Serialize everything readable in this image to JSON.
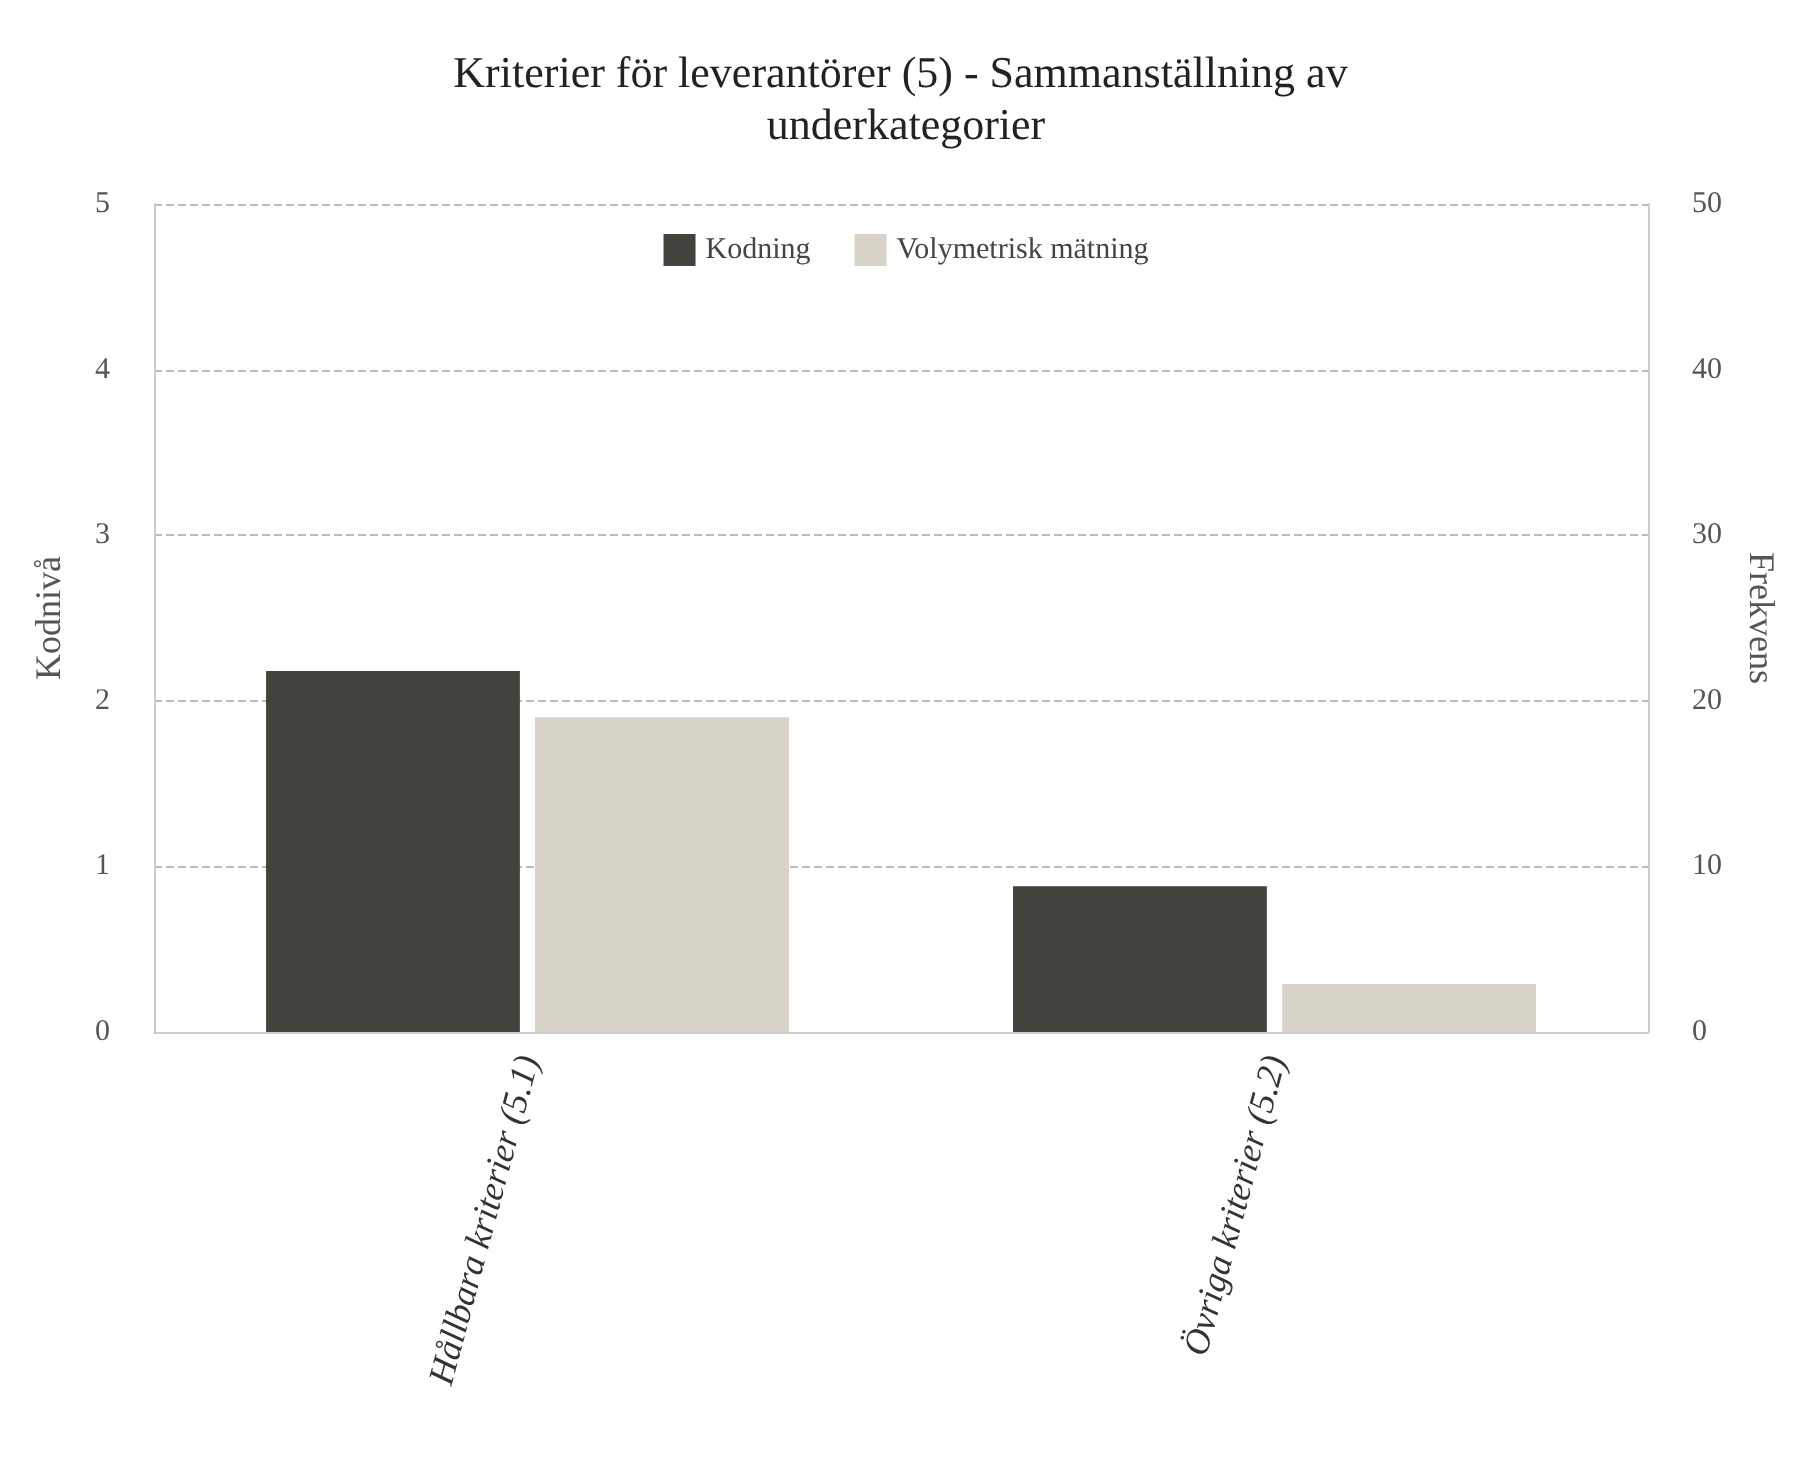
{
  "chart_data": {
    "type": "bar",
    "title": "Kriterier för leverantörer (5) - Sammanställning av underkategorier",
    "ylabel": "Kodnivå",
    "y2label": "Frekvens",
    "categories": [
      "Hållbara kriterier (5.1)",
      "Övriga kriterier (5.2)"
    ],
    "series": [
      {
        "name": "Kodning",
        "color": "#43433d",
        "values": [
          2.18,
          0.88
        ]
      },
      {
        "name": "Volymetrisk mätning",
        "color": "#d8d3c9",
        "values": [
          19,
          2.9
        ],
        "axis": "y2"
      }
    ],
    "ylim": [
      0,
      5
    ],
    "yticks": [
      0,
      1,
      2,
      3,
      4,
      5
    ],
    "y2lim": [
      0,
      50
    ],
    "y2ticks": [
      0,
      10,
      20,
      30,
      40,
      50
    ],
    "grid": "y",
    "legend": "top"
  }
}
